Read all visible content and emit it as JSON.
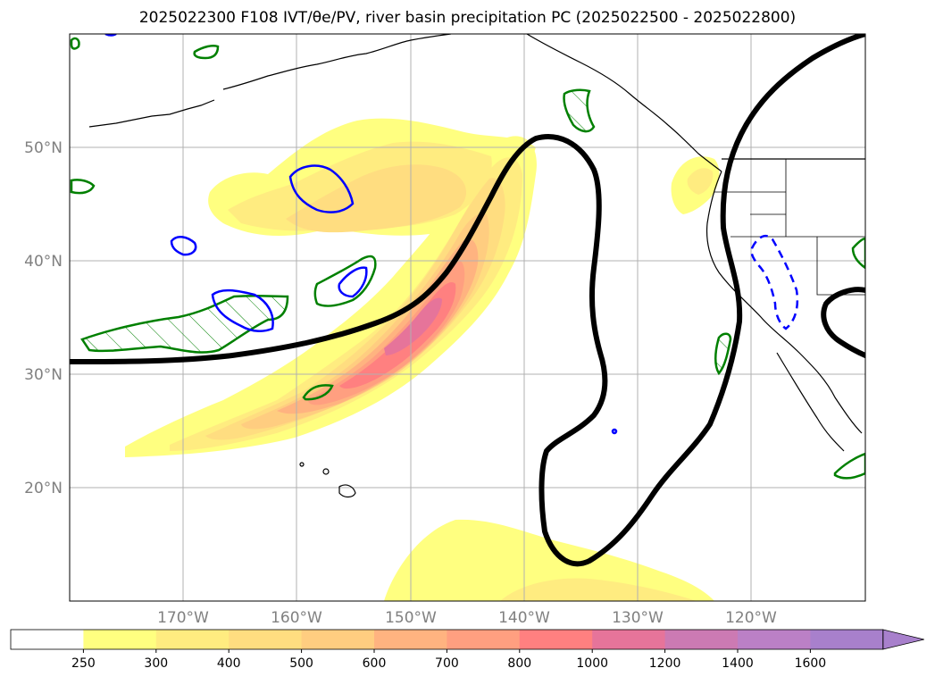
{
  "title": "2025022300 F108 IVT/θe/PV, river basin precipitation PC (2025022500 - 2025022800)",
  "map": {
    "lat_labels": [
      "50°N",
      "40°N",
      "30°N",
      "20°N"
    ],
    "lon_labels": [
      "170°W",
      "160°W",
      "150°W",
      "140°W",
      "130°W",
      "120°W"
    ],
    "colors": {
      "coast": "#000000",
      "theta_e_contour": "#000000",
      "pv_positive": "#008000",
      "pv_negative": "#0000ff",
      "grid": "#b0b0b0"
    }
  },
  "colorbar": {
    "ticks": [
      "250",
      "300",
      "400",
      "500",
      "600",
      "700",
      "800",
      "1000",
      "1200",
      "1400",
      "1600"
    ],
    "colors": [
      "#ffffff",
      "#ffff80",
      "#ffec80",
      "#ffdd80",
      "#ffcd80",
      "#ffb380",
      "#ff9f80",
      "#ff8080",
      "#e6749a",
      "#cc7ab3",
      "#bb80c6",
      "#a880cc"
    ],
    "extend": "max"
  }
}
